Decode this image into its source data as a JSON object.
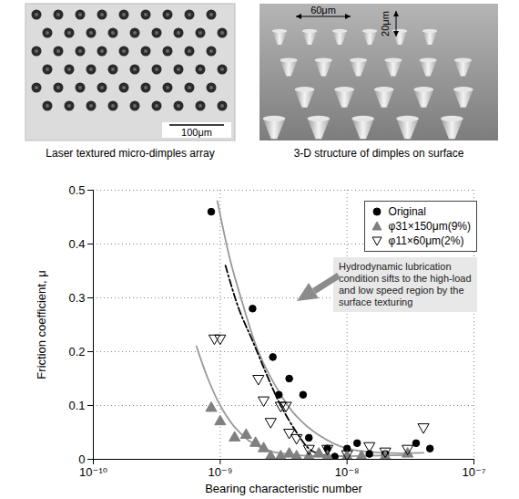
{
  "images": [
    {
      "caption": "Laser textured micro-dimples array",
      "scale_bar": "100μm"
    },
    {
      "caption": "3-D structure of dimples on surface",
      "dimensions": [
        "60μm",
        "20μm"
      ]
    }
  ],
  "chart_data": {
    "type": "scatter",
    "xlabel": "Bearing characteristic number",
    "ylabel": "Friction coefficient, μ",
    "log": "x",
    "grid": true,
    "legend": "top-right",
    "xlim": [
      1e-10,
      1e-07
    ],
    "xticks": [
      {
        "value": 1e-10,
        "label": "10⁻¹⁰"
      },
      {
        "value": 1e-09,
        "label": "10⁻⁹"
      },
      {
        "value": 1e-08,
        "label": "10⁻⁸"
      },
      {
        "value": 1e-07,
        "label": "10⁻⁷"
      }
    ],
    "ylim": [
      0,
      0.5
    ],
    "yticks": [
      0,
      0.1,
      0.2,
      0.3,
      0.4,
      0.5
    ],
    "annotations": [
      {
        "text": "Hydrodynamic lubrication condition sifts to the high-load and low speed region by the surface texturing"
      }
    ],
    "series": [
      {
        "name": "Original",
        "type": "scatter",
        "marker": "circle",
        "color": "#000000",
        "x": [
          8.5e-10,
          1.8e-09,
          2.6e-09,
          2.9e-09,
          3.5e-09,
          4.5e-09,
          5e-09,
          7e-09,
          8e-09,
          1e-08,
          1.2e-08,
          1.5e-08,
          2e-08,
          3.5e-08,
          4.5e-08
        ],
        "values": [
          0.46,
          0.28,
          0.19,
          0.12,
          0.15,
          0.12,
          0.04,
          0.02,
          0.005,
          0.02,
          0.03,
          0.01,
          0.01,
          0.03,
          0.02
        ]
      },
      {
        "name": "φ31×150μm(9%)",
        "type": "scatter",
        "marker": "triangle",
        "color": "#808080",
        "x": [
          8.5e-10,
          1e-09,
          1.3e-09,
          1.6e-09,
          1.9e-09,
          2.2e-09,
          2.5e-09,
          3e-09,
          3.5e-09,
          4e-09,
          5e-09,
          6e-09,
          7e-09,
          1e-08,
          1.3e-08,
          2e-08,
          3e-08
        ],
        "values": [
          0.095,
          0.07,
          0.04,
          0.045,
          0.03,
          0.02,
          0.005,
          0.005,
          0.01,
          0.005,
          0.005,
          0.01,
          0.005,
          0.005,
          0.005,
          0.005,
          0.01
        ]
      },
      {
        "name": "φ11×60μm(2%)",
        "type": "scatter",
        "marker": "triangle-down-open",
        "color": "#000000",
        "x": [
          9e-10,
          1e-09,
          2e-09,
          2.2e-09,
          2.5e-09,
          3e-09,
          3.3e-09,
          3.5e-09,
          4e-09,
          5e-09,
          7e-09,
          1e-08,
          1.5e-08,
          2e-08,
          3e-08,
          4e-08
        ],
        "values": [
          0.225,
          0.225,
          0.15,
          0.11,
          0.07,
          0.1,
          0.1,
          0.05,
          0.04,
          0.02,
          0.02,
          0.01,
          0.025,
          0.015,
          0.02,
          0.06
        ]
      },
      {
        "type": "line",
        "line_style": "solid",
        "color": "#999999",
        "x": [
          9.5e-10,
          1.2e-09,
          1.5e-09,
          2e-09,
          3e-09,
          4e-09,
          6e-09,
          1e-08,
          2e-08,
          4e-08
        ],
        "values": [
          0.48,
          0.37,
          0.29,
          0.2,
          0.12,
          0.08,
          0.045,
          0.02,
          0.012,
          0.012
        ]
      },
      {
        "type": "line",
        "line_style": "dashdot",
        "color": "#000000",
        "x": [
          1.1e-09,
          1.4e-09,
          1.8e-09,
          2.5e-09,
          3e-09,
          4e-09,
          5e-09,
          6e-09,
          8e-09
        ],
        "values": [
          0.36,
          0.28,
          0.22,
          0.14,
          0.1,
          0.05,
          0.02,
          0.01,
          0.005
        ]
      },
      {
        "type": "line",
        "line_style": "solid",
        "color": "#999999",
        "x": [
          6.5e-10,
          8e-10,
          1e-09,
          1.3e-09,
          1.8e-09,
          2.5e-09,
          4e-09,
          8e-09,
          2e-08,
          3e-08
        ],
        "values": [
          0.21,
          0.15,
          0.1,
          0.06,
          0.03,
          0.015,
          0.008,
          0.006,
          0.007,
          0.008
        ]
      }
    ]
  }
}
